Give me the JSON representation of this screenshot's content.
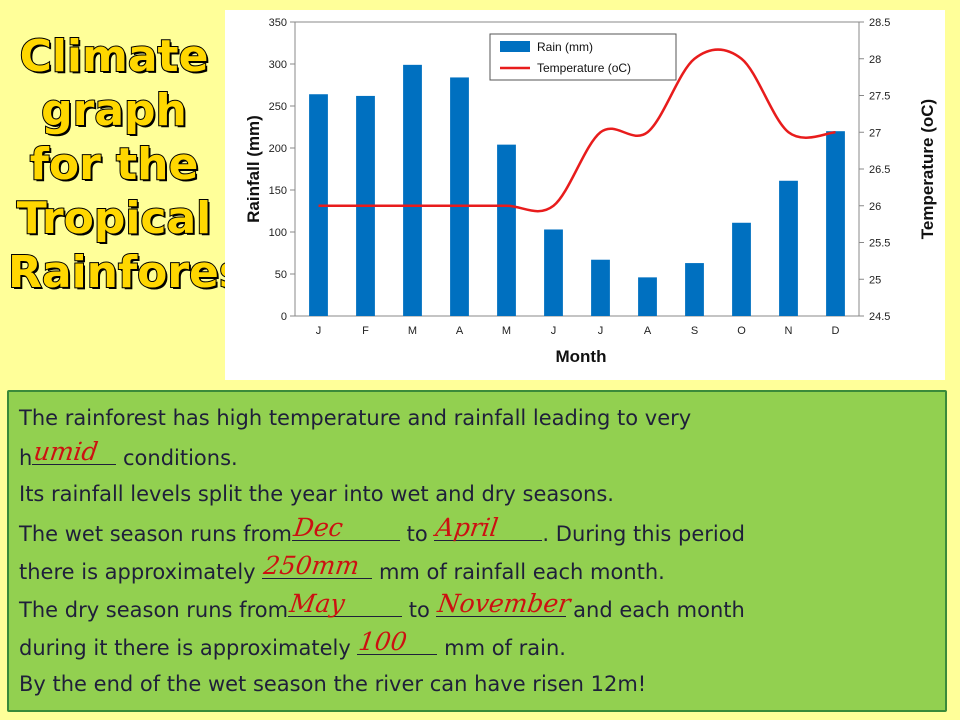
{
  "side_title": "Climate graph for the Tropical Rainforest",
  "chart_data": {
    "type": "bar",
    "categories": [
      "J",
      "F",
      "M",
      "A",
      "M",
      "J",
      "J",
      "A",
      "S",
      "O",
      "N",
      "D"
    ],
    "series": [
      {
        "name": "Rain (mm)",
        "type": "bar",
        "axis": "left",
        "values": [
          264,
          262,
          299,
          284,
          204,
          103,
          67,
          46,
          63,
          111,
          161,
          220
        ]
      },
      {
        "name": "Temperature (oC)",
        "type": "line",
        "axis": "right",
        "values": [
          26,
          26,
          26,
          26,
          26,
          26,
          27,
          27,
          28,
          28,
          27,
          27
        ]
      }
    ],
    "xlabel": "Month",
    "ylabel": "Rainfall  (mm)",
    "y2label": "Temperature (oC)",
    "ylim": [
      0,
      350
    ],
    "yticks": [
      "0",
      "50",
      "100",
      "150",
      "200",
      "250",
      "300",
      "350"
    ],
    "y2lim": [
      24.5,
      28.5
    ],
    "y2ticks": [
      "24.5",
      "25",
      "25.5",
      "26",
      "26.5",
      "27",
      "27.5",
      "28",
      "28.5"
    ],
    "legend_position": "top",
    "colors": {
      "bar": "#0070c0",
      "line": "#e81c1c"
    }
  },
  "text": {
    "l1": "The rainforest has high temperature and rainfall leading to very",
    "l2_a": "h",
    "l2_ans": "umid",
    "l2_b": " conditions.",
    "l3": "Its rainfall levels split the year into wet and dry seasons.",
    "l4_a": "The wet season runs from",
    "l4_ans1": "Dec",
    "l4_b": " to ",
    "l4_ans2": "April",
    "l4_c": ".  During this period",
    "l5_a": "there is approximately ",
    "l5_ans": "250mm",
    "l5_b": " mm of rainfall each month.",
    "l6_a": "The dry season runs from",
    "l6_ans1": "May",
    "l6_b": " to ",
    "l6_ans2": "November",
    "l6_c": " and each month",
    "l7_a": "during it there is approximately ",
    "l7_ans": "100",
    "l7_b": " mm of rain.",
    "l8": "By the end of the wet season the river can have risen 12m!"
  }
}
